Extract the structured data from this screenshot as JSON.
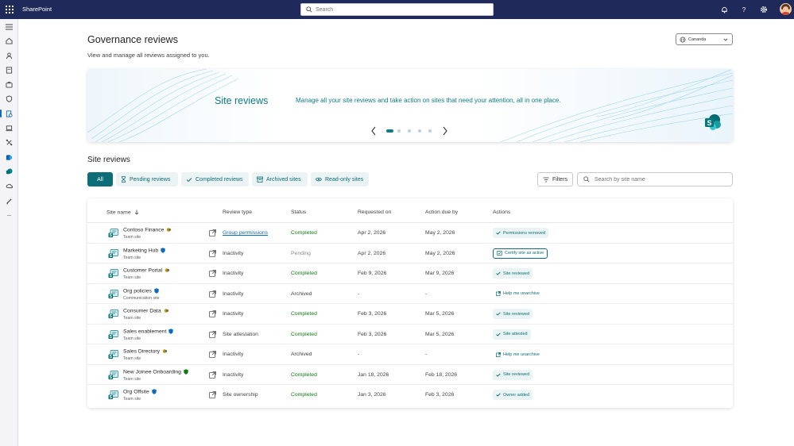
{
  "topbar": {
    "app_name": "SharePoint",
    "search_placeholder": "Search",
    "icons": [
      "app-launcher-icon",
      "bell-icon",
      "help-icon",
      "settings-icon"
    ]
  },
  "rail": {
    "icons": [
      "hamburger-icon",
      "home-icon",
      "people-icon",
      "files-icon",
      "briefcase-icon",
      "shield-icon",
      "governance-icon",
      "laptop-icon",
      "connectors-icon",
      "exchange-icon",
      "sharepoint-icon",
      "onedrive-icon",
      "pen-icon",
      "more-icon"
    ],
    "active_index": 6
  },
  "header": {
    "title": "Governance reviews",
    "subtitle": "View and manage all reviews assigned to you.",
    "site_picker": "Cananda"
  },
  "banner": {
    "title": "Site reviews",
    "description": "Manage all your site reviews and take action on sites that need your attention, all in one place.",
    "dots": 5,
    "active_dot": 0
  },
  "section": {
    "title": "Site reviews",
    "pills": [
      {
        "label": "All",
        "icon": "",
        "active": true
      },
      {
        "label": "Pending reviews",
        "icon": "hourglass-icon",
        "active": false
      },
      {
        "label": "Completed reviews",
        "icon": "check-icon",
        "active": false
      },
      {
        "label": "Archived sites",
        "icon": "archive-icon",
        "active": false
      },
      {
        "label": "Read-only sites",
        "icon": "eye-icon",
        "active": false
      }
    ],
    "filters_label": "Filters",
    "search_placeholder": "Search by site name"
  },
  "table": {
    "columns": [
      "Site name",
      "Review type",
      "Status",
      "Requested on",
      "Action due by",
      "Actions"
    ],
    "sort_column": "Site name",
    "rows": [
      {
        "name": "Contoso Finance",
        "type": "Team site",
        "badge": "yellow",
        "review": "Group permissions",
        "review_link": true,
        "status": "Completed",
        "requested": "Apr 2, 2026",
        "due": "May 2, 2026",
        "action": "Permissions removed",
        "action_style": "tag",
        "action_icon": "check-icon"
      },
      {
        "name": "Marketing Hub",
        "type": "Team site",
        "badge": "blue",
        "review": "Inactivity",
        "review_link": false,
        "status": "Pending",
        "requested": "Apr 2, 2026",
        "due": "May 2, 2026",
        "action": "Certify site as active",
        "action_style": "btn",
        "action_icon": "certify-icon"
      },
      {
        "name": "Customer Portal",
        "type": "Team site",
        "badge": "yellow",
        "review": "Inactivity",
        "review_link": false,
        "status": "Completed",
        "requested": "Feb 9, 2026",
        "due": "Mar 9, 2026",
        "action": "Site reviewed",
        "action_style": "tag",
        "action_icon": "check-icon"
      },
      {
        "name": "Org policies",
        "type": "Communication site",
        "badge": "blue",
        "review": "Inactivity",
        "review_link": false,
        "status": "Archived",
        "requested": "-",
        "due": "-",
        "action": "Help me unarchive",
        "action_style": "plain",
        "action_icon": "open-icon"
      },
      {
        "name": "Consumer Data",
        "type": "Team site",
        "badge": "yellow",
        "review": "Inactivity",
        "review_link": false,
        "status": "Completed",
        "requested": "Feb 3, 2026",
        "due": "Mar 5, 2026",
        "action": "Site reviewed",
        "action_style": "tag",
        "action_icon": "check-icon"
      },
      {
        "name": "Sales enablement",
        "type": "Team site",
        "badge": "blue",
        "review": "Site attestation",
        "review_link": false,
        "status": "Completed",
        "requested": "Feb 3, 2026",
        "due": "Mar 5, 2026",
        "action": "Site attested",
        "action_style": "tag",
        "action_icon": "check-icon"
      },
      {
        "name": "Sales Directory",
        "type": "Team site",
        "badge": "yellow",
        "review": "Inactivity",
        "review_link": false,
        "status": "Archived",
        "requested": "-",
        "due": "-",
        "action": "Help me unarchive",
        "action_style": "plain",
        "action_icon": "open-icon"
      },
      {
        "name": "New Joinee Onboarding",
        "type": "Team site",
        "badge": "green",
        "review": "Inactivity",
        "review_link": false,
        "status": "Completed",
        "requested": "Jan 18, 2026",
        "due": "Feb 18, 2026",
        "action": "Site reviewed",
        "action_style": "tag",
        "action_icon": "check-icon"
      },
      {
        "name": "Org Offsite",
        "type": "Team site",
        "badge": "blue",
        "review": "Site ownership",
        "review_link": false,
        "status": "Completed",
        "requested": "Jan 3, 2026",
        "due": "Feb 3, 2026",
        "action": "Owner added",
        "action_style": "tag",
        "action_icon": "check-icon"
      }
    ]
  },
  "colors": {
    "topbar": "#1f2a5a",
    "accent": "#0e6e78",
    "completed": "#107c10",
    "link": "#0f6cbd"
  }
}
